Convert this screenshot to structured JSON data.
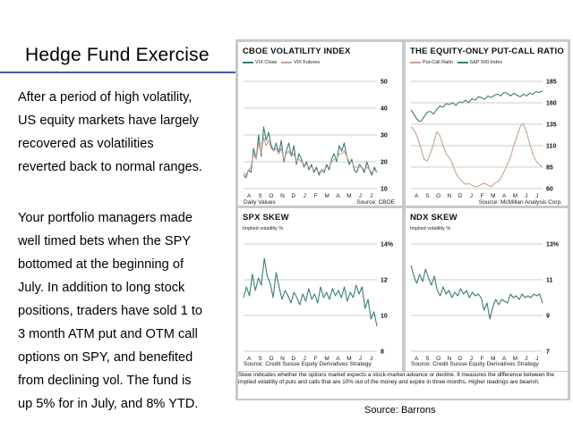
{
  "slide": {
    "title": "Hedge Fund Exercise",
    "paragraph1": "After a period of high volatility,\nUS equity markets have largely\nrecovered as volatilities\nreverted back to normal ranges.",
    "paragraph2": "Your portfolio managers made\nwell timed bets when the SPY\nbottomed at the beginning of\nJuly. In addition to long stock\npositions, traders have sold 1 to\n3 month ATM put and OTM call\noptions on SPY, and benefited\nfrom declining vol. The fund is\nup 5% for in July, and 8% YTD.",
    "source": "Source: Barrons"
  },
  "figure": {
    "note": "Skew indicates whether the options market expects a stock-market advance or decline. It measures the difference between the implied volatility of puts and calls that are 10% out of the money and expire in three months. Higher readings are bearish."
  },
  "chart_data": [
    {
      "type": "line",
      "title": "CBOE VOLATILITY INDEX",
      "subtitle": "",
      "x_ticks": [
        "A",
        "S",
        "O",
        "N",
        "D",
        "J",
        "F",
        "M",
        "A",
        "M",
        "J",
        "J"
      ],
      "y_ticks": [
        "50",
        "40",
        "30",
        "20",
        "10"
      ],
      "ylim": [
        10,
        50
      ],
      "footer_left": "Daily Values",
      "footer_right": "Source: CBOE",
      "colors": {
        "VIX Close": "#3a7d7a",
        "VIX Futures": "#c9a08a"
      },
      "series": [
        {
          "name": "VIX Close",
          "values": [
            15,
            14,
            17,
            16,
            25,
            21,
            30,
            22,
            33,
            28,
            31,
            26,
            24,
            27,
            23,
            28,
            20,
            24,
            27,
            22,
            26,
            19,
            23,
            21,
            18,
            20,
            17,
            19,
            16,
            18,
            15,
            17,
            16,
            19,
            17,
            21,
            23,
            20,
            26,
            24,
            27,
            22,
            19,
            21,
            17,
            16,
            19,
            18,
            16,
            20,
            17,
            15,
            18,
            16
          ]
        },
        {
          "name": "VIX Futures",
          "values": [
            16,
            15,
            17,
            18,
            23,
            21,
            27,
            23,
            29,
            26,
            28,
            25,
            24,
            25,
            23,
            25,
            21,
            23,
            24,
            22,
            23,
            20,
            21,
            20,
            19,
            19,
            18,
            18,
            17,
            17,
            16,
            17,
            17,
            18,
            18,
            20,
            21,
            21,
            23,
            23,
            24,
            22,
            20,
            20,
            18,
            18,
            18,
            18,
            17,
            18,
            17,
            16,
            17,
            16
          ]
        }
      ]
    },
    {
      "type": "line",
      "title": "THE EQUITY-ONLY PUT-CALL RATIO",
      "subtitle": "",
      "x_ticks": [
        "A",
        "S",
        "O",
        "N",
        "D",
        "J",
        "F",
        "M",
        "A",
        "M",
        "J",
        "J"
      ],
      "y_ticks": [
        "185",
        "160",
        "135",
        "110",
        "85",
        "60"
      ],
      "ylim": [
        60,
        185
      ],
      "footer_left": "",
      "footer_right": "Source: McMillan Analysis Corp.",
      "colors": {
        "Put-Call Ratio": "#c9a08a",
        "S&P 500 Index": "#3a7d7a"
      },
      "series": [
        {
          "name": "Put-Call Ratio",
          "values": [
            132,
            128,
            120,
            108,
            95,
            92,
            100,
            112,
            126,
            122,
            110,
            100,
            96,
            88,
            78,
            72,
            68,
            65,
            66,
            64,
            62,
            63,
            65,
            66,
            64,
            62,
            66,
            68,
            72,
            80,
            88,
            96,
            110,
            120,
            132,
            136,
            126,
            112,
            100,
            92,
            88,
            85
          ]
        },
        {
          "name": "S&P 500 Index",
          "values": [
            152,
            146,
            140,
            138,
            143,
            149,
            150,
            147,
            152,
            156,
            155,
            159,
            158,
            160,
            157,
            161,
            160,
            163,
            160,
            165,
            163,
            167,
            166,
            164,
            168,
            166,
            169,
            170,
            168,
            172,
            171,
            168,
            171,
            169,
            167,
            170,
            168,
            171,
            170,
            173,
            172,
            174
          ]
        }
      ]
    },
    {
      "type": "line",
      "title": "SPX SKEW",
      "subtitle": "Implied volatility %",
      "x_ticks": [
        "A",
        "S",
        "O",
        "N",
        "D",
        "J",
        "F",
        "M",
        "A",
        "M",
        "J",
        "J"
      ],
      "y_ticks": [
        "14%",
        "12",
        "10",
        "8"
      ],
      "ylim": [
        8,
        14
      ],
      "footer_left": "",
      "footer_right": "Source: Credit Suisse Equity Derivatives Strategy",
      "colors": {
        "SPX Skew": "#3a7d7a"
      },
      "series": [
        {
          "name": "SPX Skew",
          "values": [
            11.0,
            11.6,
            11.1,
            12.3,
            11.4,
            12.1,
            11.7,
            13.2,
            12.2,
            11.8,
            11.0,
            12.4,
            11.6,
            10.9,
            11.4,
            11.1,
            10.7,
            11.3,
            11.0,
            10.6,
            11.2,
            10.8,
            11.5,
            10.9,
            11.2,
            10.7,
            11.6,
            11.0,
            11.3,
            10.9,
            11.5,
            11.1,
            11.4,
            11.0,
            11.6,
            10.8,
            11.3,
            11.0,
            11.7,
            11.2,
            11.6,
            10.4,
            10.9,
            9.8,
            10.2,
            9.4
          ]
        }
      ]
    },
    {
      "type": "line",
      "title": "NDX SKEW",
      "subtitle": "Implied volatility %",
      "x_ticks": [
        "A",
        "S",
        "O",
        "N",
        "D",
        "J",
        "F",
        "M",
        "A",
        "M",
        "J",
        "J"
      ],
      "y_ticks": [
        "13%",
        "11",
        "9",
        "7"
      ],
      "ylim": [
        7,
        13
      ],
      "footer_left": "",
      "footer_right": "Source: Credit Suisse Equity Derivatives Strategy",
      "colors": {
        "NDX Skew": "#3a7d7a"
      },
      "series": [
        {
          "name": "NDX Skew",
          "values": [
            11.8,
            11.2,
            10.8,
            11.3,
            10.9,
            11.6,
            11.1,
            10.7,
            11.2,
            10.4,
            10.1,
            10.6,
            10.2,
            10.4,
            10.0,
            10.3,
            10.1,
            10.5,
            10.2,
            10.4,
            10.0,
            10.3,
            10.1,
            10.2,
            10.0,
            9.3,
            9.7,
            8.8,
            9.5,
            9.9,
            9.6,
            9.9,
            9.8,
            9.7,
            10.2,
            10.0,
            10.1,
            9.9,
            10.2,
            10.0,
            10.1,
            10.0,
            10.2,
            10.1,
            10.2,
            9.7
          ]
        }
      ]
    }
  ]
}
